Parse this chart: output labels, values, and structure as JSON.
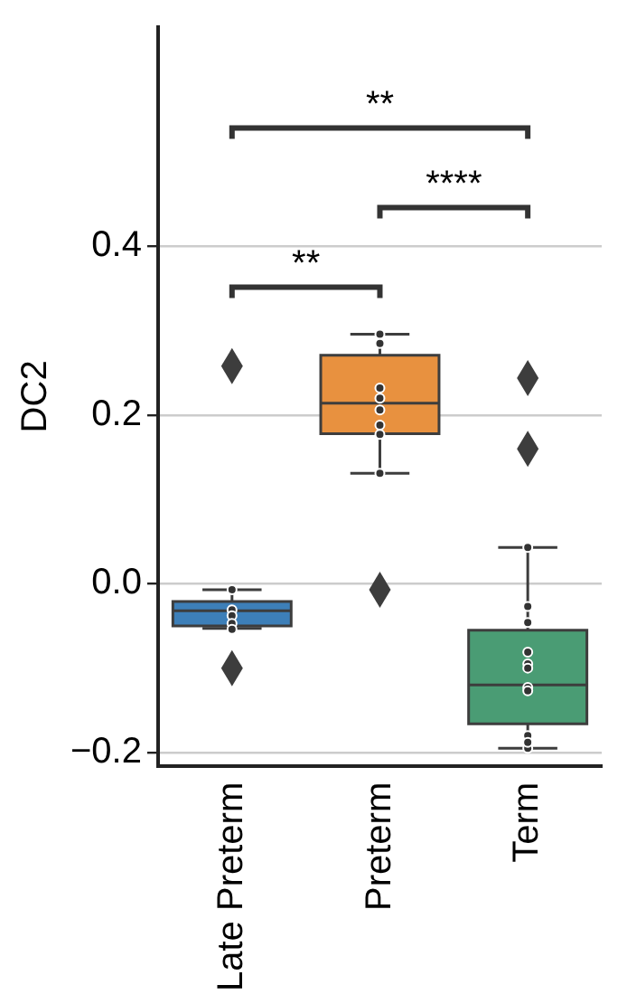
{
  "chart_data": {
    "type": "box",
    "ylabel": "DC2",
    "categories": [
      "Late Preterm",
      "Preterm",
      "Term"
    ],
    "colors": [
      "#3d7fb8",
      "#e8913f",
      "#4a9c74"
    ],
    "boxes": [
      {
        "low": -0.053,
        "q1": -0.05,
        "median": -0.032,
        "q3": -0.021,
        "high": -0.007,
        "outliers": [
          0.258,
          -0.1
        ]
      },
      {
        "low": 0.131,
        "q1": 0.178,
        "median": 0.214,
        "q3": 0.271,
        "high": 0.296,
        "outliers": [
          -0.007
        ]
      },
      {
        "low": -0.195,
        "q1": -0.166,
        "median": -0.12,
        "q3": -0.055,
        "high": 0.043,
        "outliers": [
          0.244,
          0.16
        ]
      }
    ],
    "series": [
      {
        "type": "scatter",
        "color": "#333333",
        "x": [
          "Late Preterm",
          "Late Preterm",
          "Late Preterm",
          "Late Preterm",
          "Late Preterm",
          "Preterm",
          "Preterm",
          "Preterm",
          "Preterm",
          "Preterm",
          "Preterm",
          "Preterm",
          "Preterm",
          "Term",
          "Term",
          "Term",
          "Term",
          "Term",
          "Term",
          "Term",
          "Term",
          "Term",
          "Term",
          "Term"
        ],
        "values": [
          -0.007,
          -0.031,
          -0.038,
          -0.047,
          -0.054,
          0.296,
          0.285,
          0.232,
          0.22,
          0.206,
          0.188,
          0.177,
          0.131,
          0.043,
          -0.027,
          -0.046,
          -0.081,
          -0.095,
          -0.1,
          -0.123,
          -0.127,
          -0.18,
          -0.195,
          -0.188
        ]
      }
    ],
    "ylim": [
      -0.216,
      0.66
    ],
    "yticks": [
      {
        "value": -0.2,
        "label": "−0.2"
      },
      {
        "value": 0,
        "label": "0.0"
      },
      {
        "value": 0.2,
        "label": "0.2"
      },
      {
        "value": 0.4,
        "label": "0.4"
      }
    ],
    "grid": "y",
    "marker": "circle",
    "annotations": [
      "**",
      "****",
      "**"
    ]
  }
}
